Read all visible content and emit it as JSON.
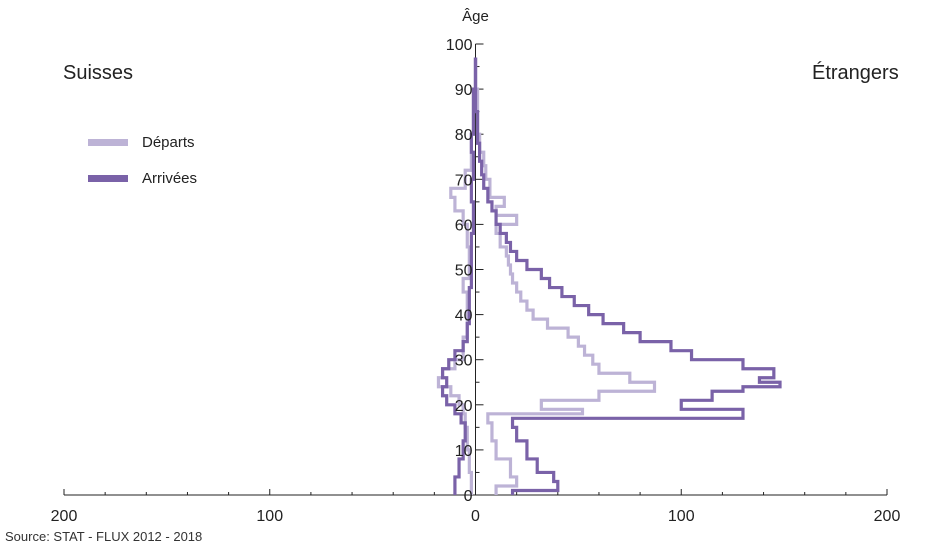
{
  "chart_data": {
    "type": "line",
    "ylabel": "Âge",
    "left_title": "Suisses",
    "right_title": "Étrangers",
    "source": "Source: STAT - FLUX 2012 - 2018",
    "xlim": [
      -200,
      200
    ],
    "ylim": [
      0,
      100
    ],
    "x_tick_values": [
      -200,
      -100,
      0,
      100,
      200
    ],
    "x_tick_labels": [
      "200",
      "100",
      "0",
      "100",
      "200"
    ],
    "y_tick_values": [
      0,
      10,
      20,
      30,
      40,
      50,
      60,
      70,
      80,
      90,
      100
    ],
    "y_tick_labels": [
      "0",
      "10",
      "20",
      "30",
      "40",
      "50",
      "60",
      "70",
      "80",
      "90",
      "100"
    ],
    "legend_position": "left",
    "series": [
      {
        "name": "Départs",
        "color": "#bdb3d6",
        "swiss": [
          {
            "age": 0,
            "v": -2
          },
          {
            "age": 5,
            "v": -3
          },
          {
            "age": 10,
            "v": -4
          },
          {
            "age": 15,
            "v": -5
          },
          {
            "age": 18,
            "v": -6
          },
          {
            "age": 20,
            "v": -8
          },
          {
            "age": 22,
            "v": -12
          },
          {
            "age": 24,
            "v": -18
          },
          {
            "age": 26,
            "v": -16
          },
          {
            "age": 28,
            "v": -10
          },
          {
            "age": 30,
            "v": -6
          },
          {
            "age": 35,
            "v": -4
          },
          {
            "age": 40,
            "v": -4
          },
          {
            "age": 45,
            "v": -6
          },
          {
            "age": 48,
            "v": -3
          },
          {
            "age": 55,
            "v": -4
          },
          {
            "age": 60,
            "v": -6
          },
          {
            "age": 63,
            "v": -10
          },
          {
            "age": 66,
            "v": -12
          },
          {
            "age": 68,
            "v": -5
          },
          {
            "age": 72,
            "v": -2
          },
          {
            "age": 80,
            "v": -1
          },
          {
            "age": 90,
            "v": 0
          },
          {
            "age": 97,
            "v": 0
          }
        ],
        "foreign": [
          {
            "age": 0,
            "v": 10
          },
          {
            "age": 2,
            "v": 20
          },
          {
            "age": 4,
            "v": 17
          },
          {
            "age": 8,
            "v": 10
          },
          {
            "age": 12,
            "v": 8
          },
          {
            "age": 16,
            "v": 6
          },
          {
            "age": 18,
            "v": 52
          },
          {
            "age": 19,
            "v": 32
          },
          {
            "age": 21,
            "v": 60
          },
          {
            "age": 23,
            "v": 87
          },
          {
            "age": 25,
            "v": 75
          },
          {
            "age": 27,
            "v": 60
          },
          {
            "age": 29,
            "v": 57
          },
          {
            "age": 31,
            "v": 53
          },
          {
            "age": 33,
            "v": 50
          },
          {
            "age": 35,
            "v": 45
          },
          {
            "age": 37,
            "v": 35
          },
          {
            "age": 39,
            "v": 28
          },
          {
            "age": 41,
            "v": 25
          },
          {
            "age": 43,
            "v": 22
          },
          {
            "age": 45,
            "v": 20
          },
          {
            "age": 47,
            "v": 18
          },
          {
            "age": 49,
            "v": 17
          },
          {
            "age": 51,
            "v": 16
          },
          {
            "age": 53,
            "v": 15
          },
          {
            "age": 55,
            "v": 12
          },
          {
            "age": 58,
            "v": 10
          },
          {
            "age": 60,
            "v": 20
          },
          {
            "age": 62,
            "v": 10
          },
          {
            "age": 64,
            "v": 14
          },
          {
            "age": 66,
            "v": 7
          },
          {
            "age": 70,
            "v": 5
          },
          {
            "age": 73,
            "v": 4
          },
          {
            "age": 76,
            "v": 2
          },
          {
            "age": 80,
            "v": 1
          },
          {
            "age": 90,
            "v": 0
          },
          {
            "age": 97,
            "v": 0
          }
        ]
      },
      {
        "name": "Arrivées",
        "color": "#7a62a8",
        "swiss": [
          {
            "age": 0,
            "v": -10
          },
          {
            "age": 4,
            "v": -8
          },
          {
            "age": 8,
            "v": -6
          },
          {
            "age": 12,
            "v": -5
          },
          {
            "age": 16,
            "v": -7
          },
          {
            "age": 18,
            "v": -10
          },
          {
            "age": 20,
            "v": -14
          },
          {
            "age": 22,
            "v": -16
          },
          {
            "age": 24,
            "v": -14
          },
          {
            "age": 26,
            "v": -16
          },
          {
            "age": 28,
            "v": -13
          },
          {
            "age": 30,
            "v": -10
          },
          {
            "age": 32,
            "v": -6
          },
          {
            "age": 34,
            "v": -4
          },
          {
            "age": 38,
            "v": -3
          },
          {
            "age": 42,
            "v": -3
          },
          {
            "age": 46,
            "v": -2
          },
          {
            "age": 52,
            "v": -2
          },
          {
            "age": 58,
            "v": -1
          },
          {
            "age": 65,
            "v": -2
          },
          {
            "age": 70,
            "v": -1
          },
          {
            "age": 76,
            "v": -2
          },
          {
            "age": 80,
            "v": -1
          },
          {
            "age": 90,
            "v": 0
          },
          {
            "age": 97,
            "v": 0
          }
        ],
        "foreign": [
          {
            "age": 0,
            "v": 18
          },
          {
            "age": 1,
            "v": 40
          },
          {
            "age": 3,
            "v": 38
          },
          {
            "age": 5,
            "v": 30
          },
          {
            "age": 8,
            "v": 25
          },
          {
            "age": 12,
            "v": 20
          },
          {
            "age": 15,
            "v": 18
          },
          {
            "age": 17,
            "v": 130
          },
          {
            "age": 19,
            "v": 100
          },
          {
            "age": 21,
            "v": 115
          },
          {
            "age": 23,
            "v": 130
          },
          {
            "age": 24,
            "v": 148
          },
          {
            "age": 25,
            "v": 138
          },
          {
            "age": 26,
            "v": 145
          },
          {
            "age": 28,
            "v": 130
          },
          {
            "age": 30,
            "v": 105
          },
          {
            "age": 32,
            "v": 95
          },
          {
            "age": 34,
            "v": 80
          },
          {
            "age": 36,
            "v": 72
          },
          {
            "age": 38,
            "v": 62
          },
          {
            "age": 40,
            "v": 55
          },
          {
            "age": 42,
            "v": 48
          },
          {
            "age": 44,
            "v": 42
          },
          {
            "age": 46,
            "v": 36
          },
          {
            "age": 48,
            "v": 32
          },
          {
            "age": 50,
            "v": 25
          },
          {
            "age": 52,
            "v": 20
          },
          {
            "age": 54,
            "v": 17
          },
          {
            "age": 56,
            "v": 15
          },
          {
            "age": 58,
            "v": 12
          },
          {
            "age": 60,
            "v": 10
          },
          {
            "age": 63,
            "v": 8
          },
          {
            "age": 65,
            "v": 6
          },
          {
            "age": 68,
            "v": 4
          },
          {
            "age": 71,
            "v": 3
          },
          {
            "age": 74,
            "v": 2
          },
          {
            "age": 78,
            "v": 1
          },
          {
            "age": 85,
            "v": 0
          },
          {
            "age": 97,
            "v": 0
          }
        ]
      }
    ]
  }
}
